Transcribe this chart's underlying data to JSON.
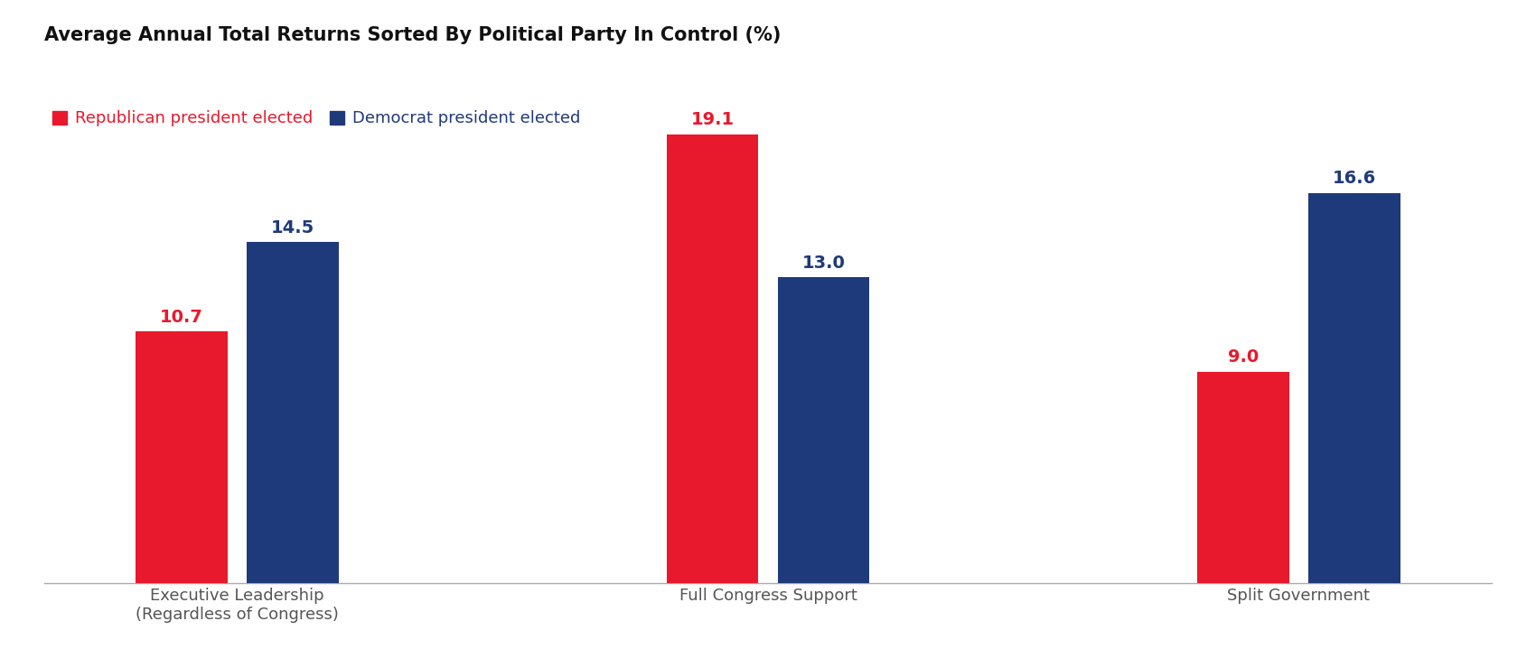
{
  "title": "Average Annual Total Returns Sorted By Political Party In Control (%)",
  "categories": [
    "Executive Leadership\n(Regardless of Congress)",
    "Full Congress Support",
    "Split Government"
  ],
  "republican_values": [
    10.7,
    19.1,
    9.0
  ],
  "democrat_values": [
    14.5,
    13.0,
    16.6
  ],
  "republican_color": "#E8192C",
  "democrat_color": "#1F3A7A",
  "legend_republican": "Republican president elected",
  "legend_democrat": "Democrat president elected",
  "bar_width": 0.38,
  "ylim": [
    0,
    22
  ],
  "background_color": "#FFFFFF",
  "title_fontsize": 15,
  "label_fontsize": 13,
  "tick_fontsize": 13,
  "value_fontsize": 14
}
